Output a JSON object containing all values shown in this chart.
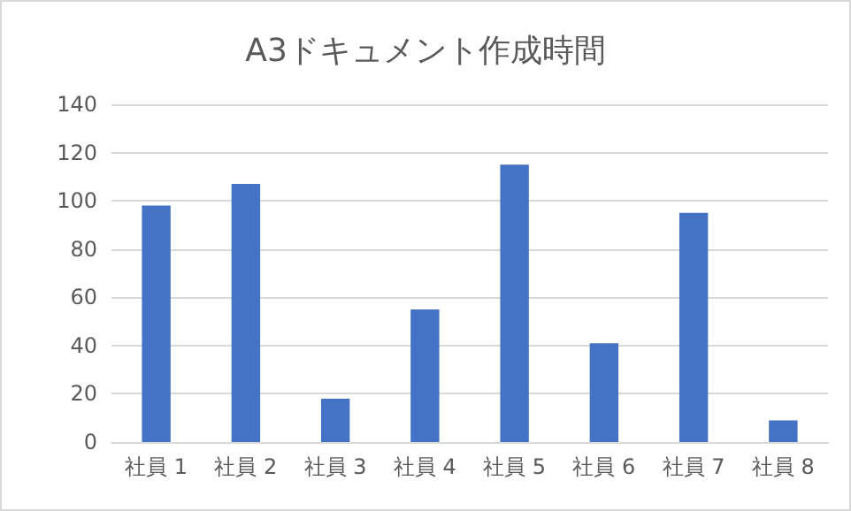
{
  "chart_data": {
    "type": "bar",
    "title": "A3ドキュメント作成時間",
    "categories": [
      "社員 1",
      "社員 2",
      "社員 3",
      "社員 4",
      "社員 5",
      "社員 6",
      "社員 7",
      "社員 8"
    ],
    "values": [
      98,
      107,
      18,
      55,
      115,
      41,
      95,
      9
    ],
    "color": "#4472c4",
    "ylim": [
      0,
      140
    ],
    "yticks": [
      0,
      20,
      40,
      60,
      80,
      100,
      120,
      140
    ],
    "grid": "y"
  }
}
